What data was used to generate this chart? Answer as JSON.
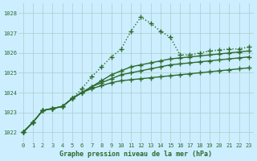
{
  "title": "Graphe pression niveau de la mer (hPa)",
  "background_color": "#cceeff",
  "grid_color": "#aacccc",
  "line_color": "#2d6a2d",
  "x_ticks": [
    0,
    1,
    2,
    3,
    4,
    5,
    6,
    7,
    8,
    9,
    10,
    11,
    12,
    13,
    14,
    15,
    16,
    17,
    18,
    19,
    20,
    21,
    22,
    23
  ],
  "ylim": [
    1021.5,
    1028.5
  ],
  "yticks": [
    1022,
    1023,
    1024,
    1025,
    1026,
    1027,
    1028
  ],
  "series1": [
    1022.0,
    1022.5,
    1023.1,
    1023.2,
    1023.3,
    1023.7,
    1024.2,
    1024.8,
    1025.3,
    1025.8,
    1026.2,
    1027.1,
    1027.8,
    1027.5,
    1027.1,
    1026.8,
    1025.9,
    1025.9,
    1026.0,
    1026.1,
    1026.15,
    1026.2,
    1026.2,
    1026.3
  ],
  "series2": [
    1022.0,
    1022.5,
    1023.1,
    1023.2,
    1023.3,
    1023.7,
    1024.0,
    1024.3,
    1024.6,
    1024.9,
    1025.1,
    1025.3,
    1025.4,
    1025.5,
    1025.6,
    1025.7,
    1025.75,
    1025.8,
    1025.85,
    1025.9,
    1025.95,
    1026.0,
    1026.05,
    1026.1
  ],
  "series3": [
    1022.0,
    1022.5,
    1023.1,
    1023.2,
    1023.3,
    1023.7,
    1024.0,
    1024.3,
    1024.5,
    1024.7,
    1024.9,
    1025.0,
    1025.1,
    1025.2,
    1025.3,
    1025.4,
    1025.45,
    1025.5,
    1025.55,
    1025.6,
    1025.65,
    1025.7,
    1025.75,
    1025.8
  ],
  "series4": [
    1022.0,
    1022.5,
    1023.1,
    1023.2,
    1023.3,
    1023.7,
    1024.0,
    1024.2,
    1024.35,
    1024.5,
    1024.6,
    1024.65,
    1024.7,
    1024.75,
    1024.8,
    1024.85,
    1024.9,
    1024.95,
    1025.0,
    1025.05,
    1025.1,
    1025.15,
    1025.2,
    1025.25
  ]
}
